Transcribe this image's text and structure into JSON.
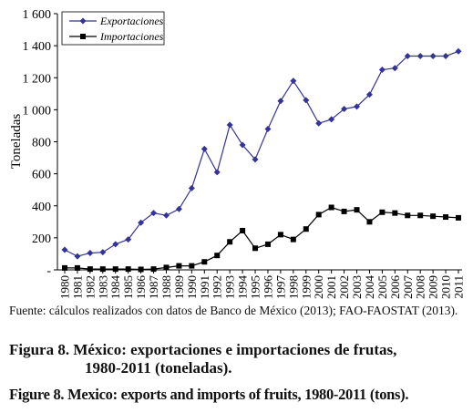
{
  "chart_data": {
    "type": "line",
    "title": "",
    "xlabel": "",
    "ylabel": "Toneladas",
    "ylim": [
      0,
      1600
    ],
    "yticks": [
      {
        "value": 0,
        "label": "-"
      },
      {
        "value": 200,
        "label": "200"
      },
      {
        "value": 400,
        "label": "400"
      },
      {
        "value": 600,
        "label": "600"
      },
      {
        "value": 800,
        "label": "800"
      },
      {
        "value": 1000,
        "label": "1 000"
      },
      {
        "value": 1200,
        "label": "1 200"
      },
      {
        "value": 1400,
        "label": "1 400"
      },
      {
        "value": 1600,
        "label": "1 600"
      }
    ],
    "categories": [
      "1980",
      "1981",
      "1982",
      "1983",
      "1984",
      "1985",
      "1986",
      "1987",
      "1988",
      "1989",
      "1990",
      "1991",
      "1992",
      "1993",
      "1994",
      "1995",
      "1996",
      "1997",
      "1998",
      "1999",
      "2000",
      "2001",
      "2002",
      "2003",
      "2004",
      "2005",
      "2006",
      "2007",
      "2008",
      "2009",
      "2010",
      "2011"
    ],
    "grid": false,
    "legend_position": "top-left",
    "series": [
      {
        "name": "Exportaciones",
        "marker": "diamond",
        "color": "#333399",
        "values": [
          125,
          85,
          105,
          110,
          160,
          190,
          295,
          355,
          340,
          380,
          510,
          755,
          610,
          905,
          780,
          690,
          880,
          1055,
          1180,
          1060,
          915,
          940,
          1005,
          1020,
          1095,
          1250,
          1260,
          1335,
          1335,
          1335,
          1335,
          1365
        ]
      },
      {
        "name": "Importaciones",
        "marker": "square",
        "color": "#000000",
        "values": [
          12,
          12,
          5,
          5,
          5,
          5,
          3,
          5,
          15,
          25,
          25,
          50,
          90,
          175,
          245,
          135,
          160,
          220,
          190,
          255,
          345,
          390,
          365,
          375,
          300,
          360,
          355,
          340,
          340,
          335,
          330,
          325
        ]
      }
    ]
  },
  "source_text": "Fuente: cálculos realizados con datos de Banco de México (2013); FAO-FAOSTAT (2013).",
  "caption_es_line1": "Figura 8. México: exportaciones e importaciones de frutas,",
  "caption_es_line2": "1980-2011 (toneladas).",
  "caption_en": "Figure 8. Mexico: exports and imports of fruits, 1980-2011 (tons)."
}
